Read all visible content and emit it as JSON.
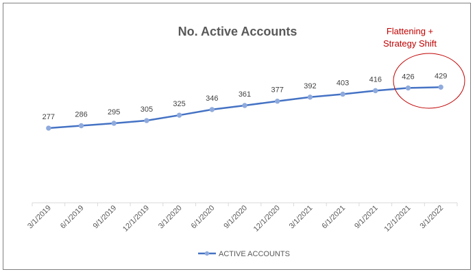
{
  "chart_data": {
    "type": "line",
    "title": "No. Active Accounts",
    "categories": [
      "3/1/2019",
      "6/1/2019",
      "9/1/2019",
      "12/1/2019",
      "3/1/2020",
      "6/1/2020",
      "9/1/2020",
      "12/1/2020",
      "3/1/2021",
      "6/1/2021",
      "9/1/2021",
      "12/1/2021",
      "3/1/2022"
    ],
    "series": [
      {
        "name": "ACTIVE ACCOUNTS",
        "values": [
          277,
          286,
          295,
          305,
          325,
          346,
          361,
          377,
          392,
          403,
          416,
          426,
          429
        ],
        "color": "#4472c4",
        "marker_color": "#8faadc"
      }
    ],
    "annotation": "Flattening + Strategy Shift",
    "annotation_color": "#c00000",
    "ylim": [
      0,
      600
    ],
    "grid": false,
    "legend_position": "bottom"
  }
}
